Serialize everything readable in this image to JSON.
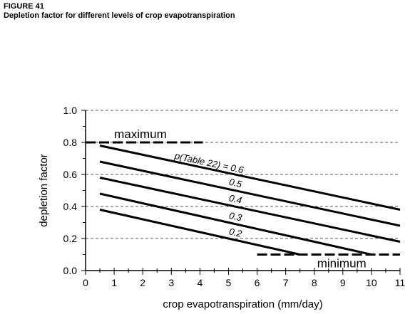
{
  "figure": {
    "label": "FIGURE 41",
    "title": "Depletion factor for different levels of crop evapotranspiration"
  },
  "chart_data": {
    "type": "line",
    "xlabel": "crop evapotranspiration (mm/day)",
    "ylabel": "depletion factor",
    "xlim": [
      0,
      11
    ],
    "ylim": [
      0,
      1
    ],
    "xticks": [
      "0",
      "1",
      "2",
      "3",
      "4",
      "5",
      "6",
      "7",
      "8",
      "9",
      "10",
      "11"
    ],
    "yticks": [
      "0.0",
      "0.2",
      "0.4",
      "0.6",
      "0.8",
      "1.0"
    ],
    "grid": "horizontal dashed",
    "series": [
      {
        "label": "p(Table 22) = 0.6",
        "x": [
          0.5,
          11
        ],
        "y": [
          0.78,
          0.38
        ]
      },
      {
        "label": "0.5",
        "x": [
          0.5,
          11
        ],
        "y": [
          0.68,
          0.28
        ]
      },
      {
        "label": "0.4",
        "x": [
          0.5,
          11
        ],
        "y": [
          0.58,
          0.18
        ]
      },
      {
        "label": "0.3",
        "x": [
          0.5,
          10
        ],
        "y": [
          0.48,
          0.1
        ]
      },
      {
        "label": "0.2",
        "x": [
          0.5,
          7.5
        ],
        "y": [
          0.38,
          0.1
        ]
      }
    ],
    "limits": [
      {
        "label": "maximum",
        "y": 0.8,
        "x": [
          0,
          4.1
        ]
      },
      {
        "label": "minimum",
        "y": 0.1,
        "x": [
          6,
          11
        ]
      }
    ],
    "colors": {
      "line": "#000000",
      "grid": "#555555"
    }
  }
}
